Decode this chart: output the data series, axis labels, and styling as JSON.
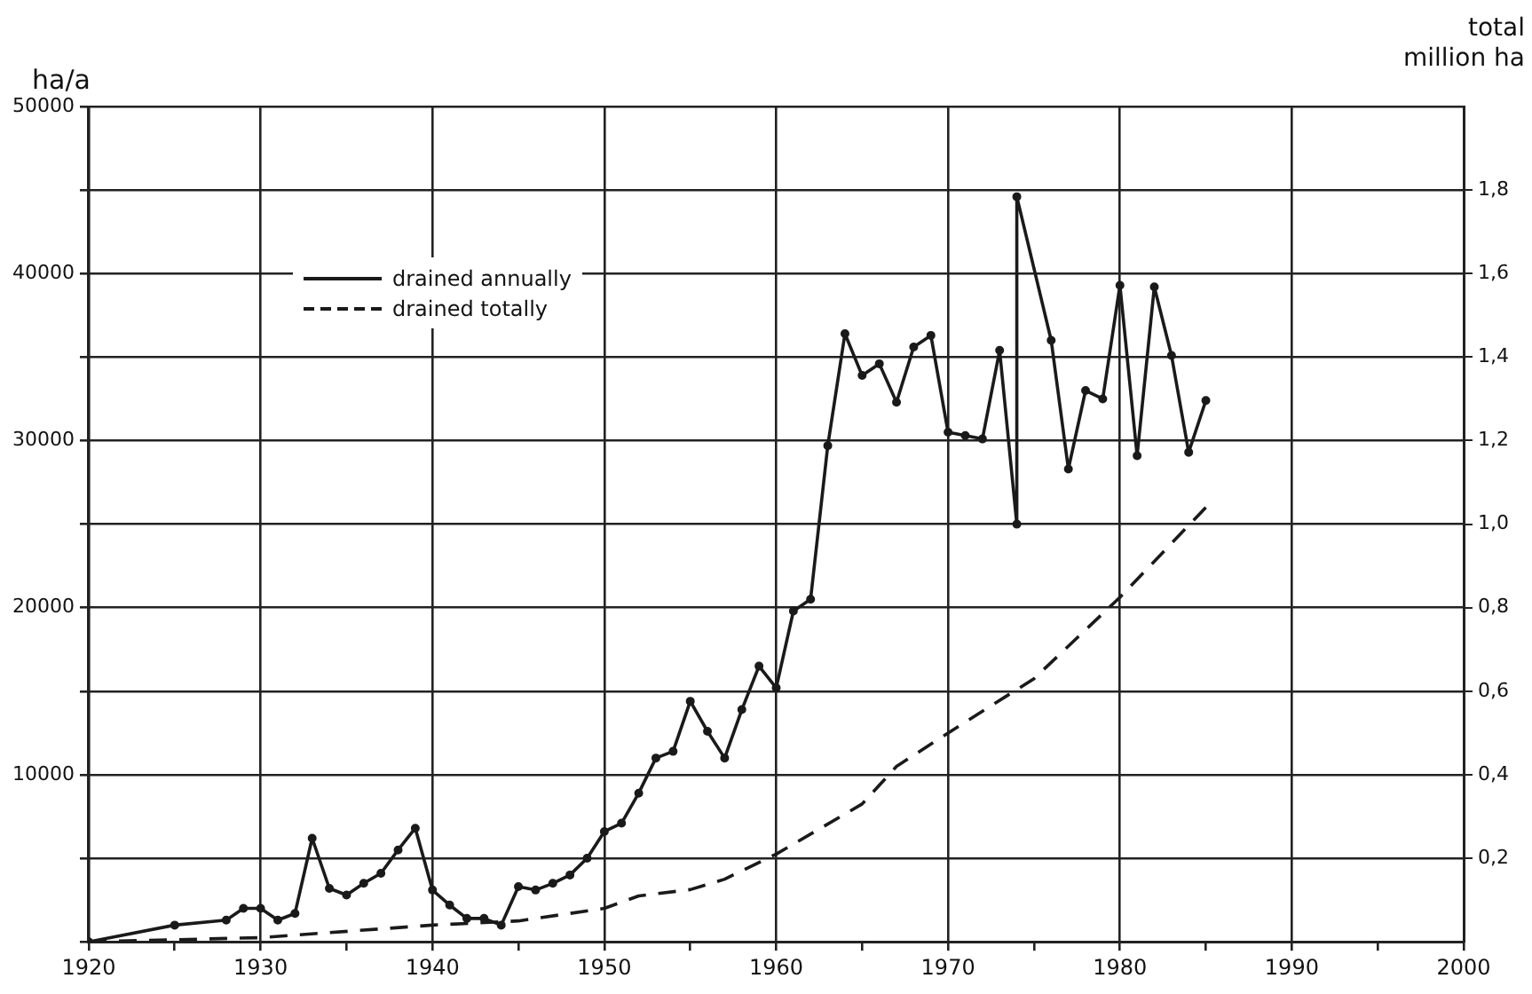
{
  "chart_data": {
    "type": "line",
    "xlabel": null,
    "ylabel": "ha/a",
    "y2label": "total million ha",
    "xlim": [
      1920,
      2000
    ],
    "xticks": [
      1920,
      {
        "value": 1925,
        "label": null
      },
      1930,
      {
        "value": 1935,
        "label": null
      },
      1940,
      {
        "value": 1945,
        "label": null
      },
      1950,
      {
        "value": 1955,
        "label": null
      },
      1960,
      {
        "value": 1965,
        "label": null
      },
      1970,
      {
        "value": 1975,
        "label": null
      },
      1980,
      {
        "value": 1985,
        "label": null
      },
      1990,
      {
        "value": 1995,
        "label": null
      },
      2000
    ],
    "ylim": [
      0,
      50000
    ],
    "yticks": [
      {
        "value": 0,
        "label": null
      },
      {
        "value": 5000,
        "label": null
      },
      10000,
      {
        "value": 15000,
        "label": null
      },
      20000,
      {
        "value": 25000,
        "label": null
      },
      30000,
      {
        "value": 35000,
        "label": null
      },
      40000,
      {
        "value": 45000,
        "label": null
      },
      50000
    ],
    "y2lim": [
      0,
      2.0
    ],
    "y2ticks": [
      {
        "value": 0.2,
        "label": "0,2"
      },
      {
        "value": 0.4,
        "label": "0,4"
      },
      {
        "value": 0.6,
        "label": "0,6"
      },
      {
        "value": 0.8,
        "label": "0,8"
      },
      {
        "value": 1.0,
        "label": "1,0"
      },
      {
        "value": 1.2,
        "label": "1,2"
      },
      {
        "value": 1.4,
        "label": "1,4"
      },
      {
        "value": 1.6,
        "label": "1,6"
      },
      {
        "value": 1.8,
        "label": "1,8"
      }
    ],
    "grid": true,
    "legend": "top left",
    "series": [
      {
        "name": "drained annually",
        "color": "#1a1a1a",
        "marker": "circle",
        "line_style": "solid",
        "x": [
          1920,
          1925,
          1928,
          1929,
          1930,
          1931,
          1932,
          1933,
          1934,
          1935,
          1936,
          1937,
          1938,
          1939,
          1940,
          1941,
          1942,
          1943,
          1944,
          1945,
          1946,
          1947,
          1948,
          1949,
          1950,
          1951,
          1952,
          1953,
          1954,
          1955,
          1956,
          1957,
          1958,
          1959,
          1960,
          1961,
          1962,
          1963,
          1964,
          1965,
          1966,
          1967,
          1968,
          1969,
          1970,
          1971,
          1972,
          1973,
          1974,
          1974,
          1976,
          1977,
          1978,
          1979,
          1980,
          1981,
          1982,
          1983,
          1984,
          1985
        ],
        "values": [
          0,
          1000,
          1300,
          2000,
          2000,
          1300,
          1700,
          6200,
          3200,
          2800,
          3500,
          4100,
          5500,
          6800,
          3100,
          2200,
          1400,
          1400,
          1000,
          3300,
          3100,
          3500,
          4000,
          5000,
          6600,
          7100,
          8900,
          11000,
          11400,
          14400,
          12600,
          11000,
          13900,
          16500,
          15200,
          19800,
          20500,
          29700,
          36400,
          33900,
          34600,
          32300,
          35600,
          36300,
          30500,
          30300,
          30100,
          35400,
          25000,
          44600,
          36000,
          28300,
          33000,
          32500,
          39300,
          29100,
          39200,
          35100,
          29300,
          32400
        ]
      },
      {
        "name": "drained totally",
        "color": "#1a1a1a",
        "axis": "y2",
        "marker": "none",
        "line_style": "dashed",
        "x": [
          1920,
          1930,
          1940,
          1945,
          1950,
          1952,
          1955,
          1957,
          1960,
          1965,
          1967,
          1970,
          1975,
          1980,
          1985
        ],
        "values": [
          0,
          0.01,
          0.04,
          0.05,
          0.08,
          0.11,
          0.125,
          0.15,
          0.21,
          0.33,
          0.42,
          0.5,
          0.63,
          0.825,
          1.04
        ]
      }
    ]
  }
}
